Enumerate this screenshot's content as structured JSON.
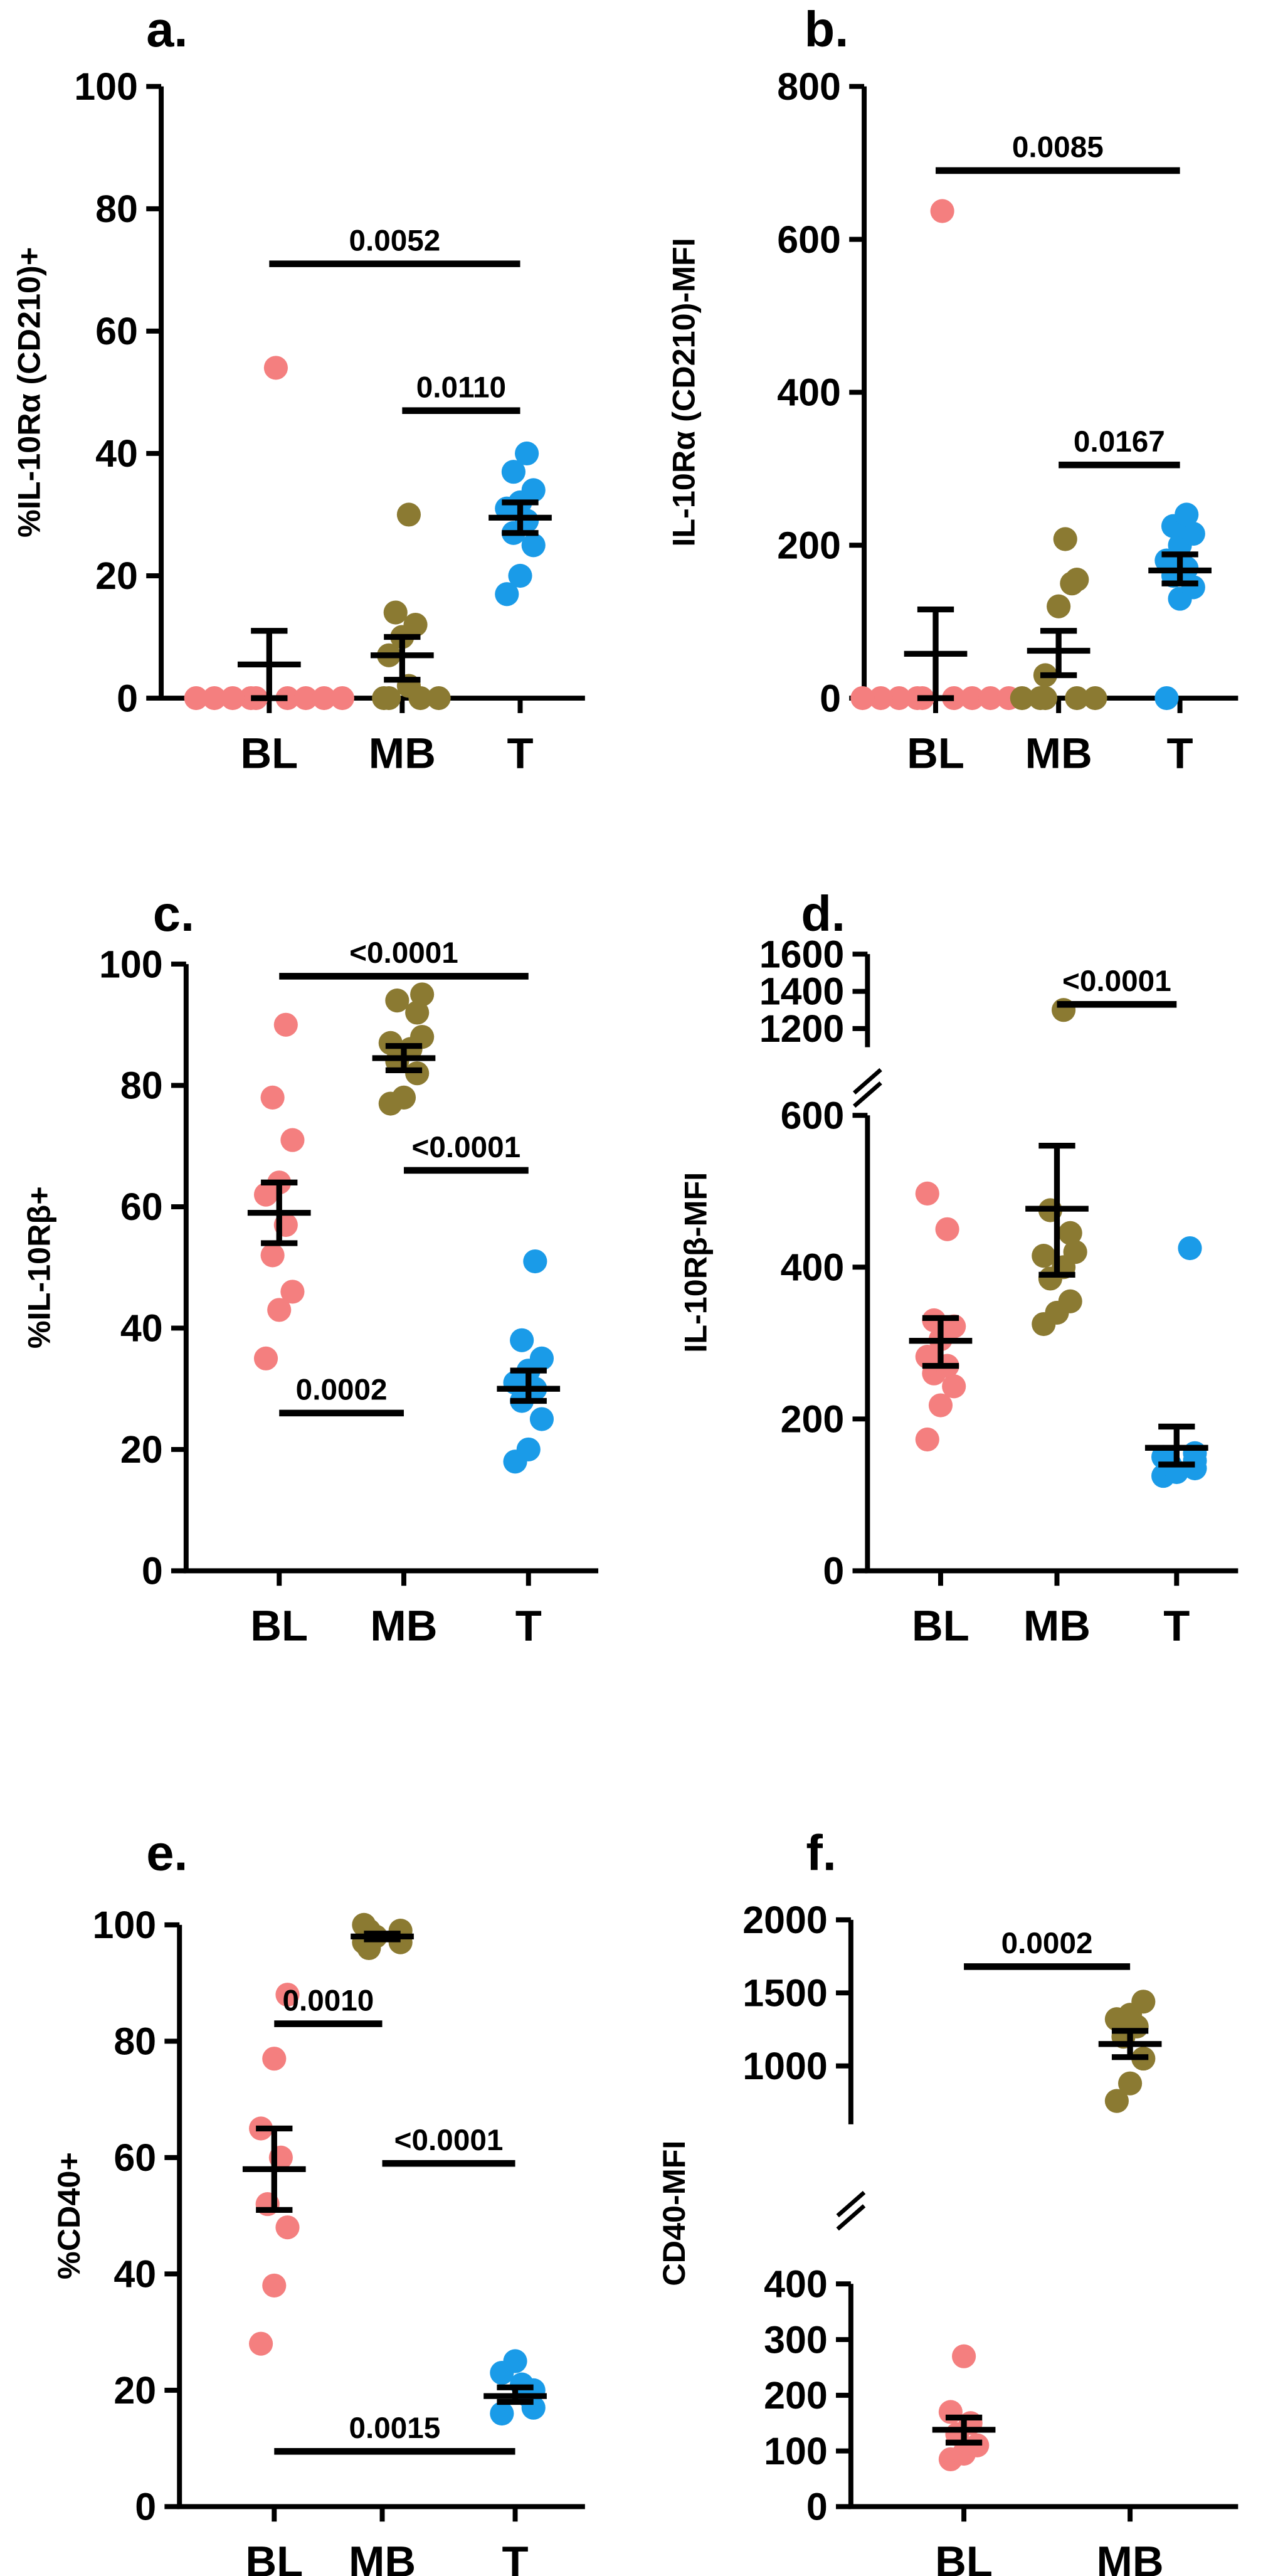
{
  "colors": {
    "BL": "#f47f7f",
    "MB": "#8b7a32",
    "T": "#1a9be8",
    "axis": "#000000"
  },
  "chart_data": [
    {
      "panel": "a.",
      "type": "scatter",
      "ylabel": "%IL-10Rα (CD210)+",
      "categories": [
        "BL",
        "MB",
        "T"
      ],
      "yticks": [
        0,
        20,
        40,
        60,
        80,
        100
      ],
      "series": [
        {
          "name": "BL",
          "values": [
            0,
            0,
            0,
            0,
            0,
            0,
            0,
            0,
            0,
            54
          ],
          "mean": 5.5,
          "sem_low": 0,
          "sem_high": 11
        },
        {
          "name": "MB",
          "values": [
            0,
            0,
            0,
            0,
            2,
            7,
            10,
            12,
            14,
            30
          ],
          "mean": 7,
          "sem_low": 3,
          "sem_high": 10
        },
        {
          "name": "T",
          "values": [
            17,
            20,
            25,
            27,
            29,
            31,
            32,
            34,
            37,
            40
          ],
          "mean": 29.5,
          "sem_low": 27,
          "sem_high": 32
        }
      ],
      "comparisons": [
        {
          "label": "0.0052",
          "from": "BL",
          "to": "T",
          "y": 71
        },
        {
          "label": "0.0110",
          "from": "MB",
          "to": "T",
          "y": 47
        }
      ]
    },
    {
      "panel": "b.",
      "type": "scatter",
      "ylabel": "IL-10Rα (CD210)-MFI",
      "categories": [
        "BL",
        "MB",
        "T"
      ],
      "yticks": [
        0,
        200,
        400,
        600,
        800
      ],
      "series": [
        {
          "name": "BL",
          "values": [
            0,
            0,
            0,
            0,
            0,
            0,
            0,
            0,
            0,
            637
          ],
          "mean": 58,
          "sem_low": 0,
          "sem_high": 116
        },
        {
          "name": "MB",
          "values": [
            0,
            0,
            0,
            0,
            0,
            30,
            120,
            150,
            155,
            208
          ],
          "mean": 62,
          "sem_low": 30,
          "sem_high": 88
        },
        {
          "name": "T",
          "values": [
            0,
            130,
            145,
            160,
            170,
            180,
            200,
            215,
            225,
            240
          ],
          "mean": 167,
          "sem_low": 150,
          "sem_high": 188
        }
      ],
      "comparisons": [
        {
          "label": "0.0085",
          "from": "BL",
          "to": "T",
          "y": 690
        },
        {
          "label": "0.0167",
          "from": "MB",
          "to": "T",
          "y": 305
        }
      ]
    },
    {
      "panel": "c.",
      "type": "scatter",
      "ylabel": "%IL-10Rβ+",
      "categories": [
        "BL",
        "MB",
        "T"
      ],
      "yticks": [
        0,
        20,
        40,
        60,
        80,
        100
      ],
      "series": [
        {
          "name": "BL",
          "values": [
            35,
            43,
            46,
            52,
            57,
            62,
            64,
            71,
            78,
            90
          ],
          "mean": 59,
          "sem_low": 54,
          "sem_high": 64
        },
        {
          "name": "MB",
          "values": [
            77,
            78,
            82,
            84,
            86,
            87,
            88,
            92,
            94,
            95
          ],
          "mean": 84.5,
          "sem_low": 82.5,
          "sem_high": 86.5
        },
        {
          "name": "T",
          "values": [
            18,
            20,
            25,
            28,
            30,
            31,
            33,
            35,
            38,
            51
          ],
          "mean": 30,
          "sem_low": 28,
          "sem_high": 33
        }
      ],
      "comparisons": [
        {
          "label": "<0.0001",
          "from": "BL",
          "to": "T",
          "y": 98
        },
        {
          "label": "<0.0001",
          "from": "MB",
          "to": "T",
          "y": 66
        },
        {
          "label": "0.0002",
          "from": "BL",
          "to": "MB",
          "y": 26
        }
      ]
    },
    {
      "panel": "d.",
      "type": "scatter",
      "ylabel": "IL-10Rβ-MFI",
      "categories": [
        "BL",
        "MB",
        "T"
      ],
      "yticks": [
        0,
        200,
        400,
        600
      ],
      "upper_yticks": [
        1200,
        1400,
        1600
      ],
      "series": [
        {
          "name": "BL",
          "values": [
            173,
            218,
            243,
            260,
            270,
            282,
            305,
            322,
            330,
            450,
            497
          ],
          "mean": 303,
          "sem_low": 270,
          "sem_high": 333
        },
        {
          "name": "MB",
          "values": [
            325,
            340,
            355,
            385,
            400,
            415,
            420,
            445,
            475,
            1300
          ],
          "mean": 477,
          "sem_low": 390,
          "sem_high": 560
        },
        {
          "name": "T",
          "values": [
            125,
            130,
            135,
            140,
            145,
            150,
            155,
            425
          ],
          "mean": 162,
          "sem_low": 140,
          "sem_high": 190
        }
      ],
      "comparisons": [
        {
          "label": "<0.0001",
          "from": "MB",
          "to": "T",
          "y": 1330
        }
      ]
    },
    {
      "panel": "e.",
      "type": "scatter",
      "ylabel": "%CD40+",
      "categories": [
        "BL",
        "MB",
        "T"
      ],
      "yticks": [
        0,
        20,
        40,
        60,
        80,
        100
      ],
      "series": [
        {
          "name": "BL",
          "values": [
            28,
            38,
            48,
            52,
            60,
            65,
            77,
            88
          ],
          "mean": 58,
          "sem_low": 51,
          "sem_high": 65
        },
        {
          "name": "MB",
          "values": [
            96,
            97,
            97,
            98,
            98,
            99,
            99,
            100
          ],
          "mean": 98,
          "sem_low": 97.5,
          "sem_high": 98.5
        },
        {
          "name": "T",
          "values": [
            16,
            17,
            19,
            20,
            21,
            23,
            25
          ],
          "mean": 19,
          "sem_low": 18,
          "sem_high": 20.5
        }
      ],
      "comparisons": [
        {
          "label": "0.0010",
          "from": "BL",
          "to": "MB",
          "y": 83
        },
        {
          "label": "<0.0001",
          "from": "MB",
          "to": "T",
          "y": 59
        },
        {
          "label": "0.0015",
          "from": "BL",
          "to": "T",
          "y": 9.5
        }
      ]
    },
    {
      "panel": "f.",
      "type": "scatter",
      "ylabel": "CD40-MFI",
      "categories": [
        "BL",
        "MB"
      ],
      "yticks": [
        0,
        100,
        200,
        300,
        400
      ],
      "upper_yticks": [
        1000,
        1500,
        2000
      ],
      "series": [
        {
          "name": "BL",
          "values": [
            85,
            95,
            110,
            130,
            150,
            170,
            270
          ],
          "mean": 138,
          "sem_low": 115,
          "sem_high": 160
        },
        {
          "name": "MB",
          "values": [
            760,
            880,
            1050,
            1200,
            1270,
            1320,
            1350,
            1440
          ],
          "mean": 1150,
          "sem_low": 1060,
          "sem_high": 1240
        }
      ],
      "comparisons": [
        {
          "label": "0.0002",
          "from": "BL",
          "to": "MB",
          "y": 1680
        }
      ]
    }
  ]
}
